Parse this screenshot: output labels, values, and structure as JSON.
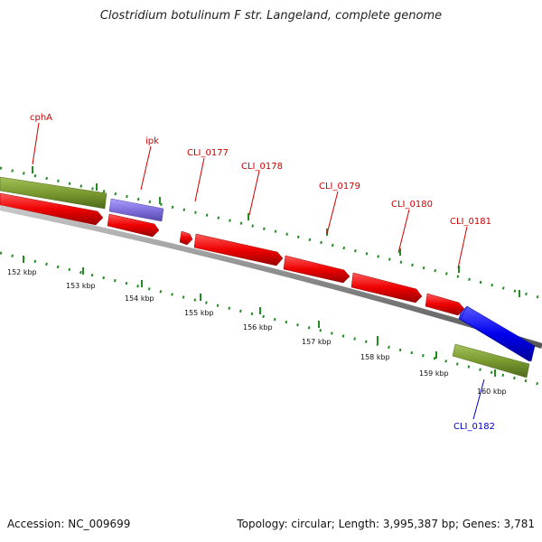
{
  "title": "Clostridium botulinum F str. Langeland, complete genome",
  "footer": {
    "accession": "Accession: NC_009699",
    "summary": "Topology: circular; Length: 3,995,387 bp; Genes: 3,781"
  },
  "colors": {
    "backbone": "#8c8c8c",
    "forward_cds": "#ff0000",
    "reverse_cds": "#0000ff",
    "trna_like_purple": "#8877dd",
    "green_feature": "#7a9a30",
    "tick": "#228b22",
    "label_red": "#cc0000",
    "label_blue": "#0000cc"
  },
  "gene_labels": [
    {
      "text": "cphA",
      "color": "red"
    },
    {
      "text": "ipk",
      "color": "red"
    },
    {
      "text": "CLI_0177",
      "color": "red"
    },
    {
      "text": "CLI_0178",
      "color": "red"
    },
    {
      "text": "CLI_0179",
      "color": "red"
    },
    {
      "text": "CLI_0180",
      "color": "red"
    },
    {
      "text": "CLI_0181",
      "color": "red"
    },
    {
      "text": "CLI_0182",
      "color": "blue"
    }
  ],
  "kbp_labels": [
    "152 kbp",
    "153 kbp",
    "154 kbp",
    "155 kbp",
    "156 kbp",
    "157 kbp",
    "158 kbp",
    "159 kbp",
    "160 kbp"
  ]
}
